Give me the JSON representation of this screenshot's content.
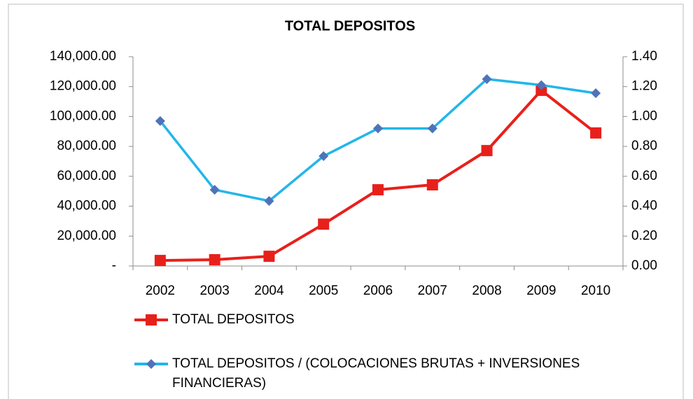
{
  "chart_data": {
    "type": "line",
    "title": "TOTAL DEPOSITOS",
    "categories": [
      "2002",
      "2003",
      "2004",
      "2005",
      "2006",
      "2007",
      "2008",
      "2009",
      "2010"
    ],
    "series": [
      {
        "name": "TOTAL DEPOSITOS",
        "color": "#e8201b",
        "marker": "square",
        "marker_color": "#e8201b",
        "values": [
          3700,
          4200,
          6500,
          28000,
          51000,
          54300,
          77200,
          117500,
          89000
        ]
      },
      {
        "name": "TOTAL DEPOSITOS / (COLOCACIONES BRUTAS + INVERSIONES FINANCIERAS)",
        "color": "#22b6ea",
        "marker": "diamond",
        "marker_color": "#4f73b8",
        "axis": "y2",
        "values": [
          0.97,
          0.51,
          0.435,
          0.735,
          0.92,
          0.92,
          1.25,
          1.21,
          1.156
        ]
      }
    ],
    "ylim": [
      0,
      140000
    ],
    "yticks": [
      {
        "value": 0,
        "label": "-"
      },
      {
        "value": 20000,
        "label": "20,000.00"
      },
      {
        "value": 40000,
        "label": "40,000.00"
      },
      {
        "value": 60000,
        "label": "60,000.00"
      },
      {
        "value": 80000,
        "label": "80,000.00"
      },
      {
        "value": 100000,
        "label": "100,000.00"
      },
      {
        "value": 120000,
        "label": "120,000.00"
      },
      {
        "value": 140000,
        "label": "140,000.00"
      }
    ],
    "y2lim": [
      0,
      1.4
    ],
    "y2ticks": [
      {
        "value": 0,
        "label": "0.00"
      },
      {
        "value": 0.2,
        "label": "0.20"
      },
      {
        "value": 0.4,
        "label": "0.40"
      },
      {
        "value": 0.6,
        "label": "0.60"
      },
      {
        "value": 0.8,
        "label": "0.80"
      },
      {
        "value": 1,
        "label": "1.00"
      },
      {
        "value": 1.2,
        "label": "1.20"
      },
      {
        "value": 1.4,
        "label": "1.40"
      }
    ],
    "grid": false,
    "legend": "bottom-left"
  }
}
